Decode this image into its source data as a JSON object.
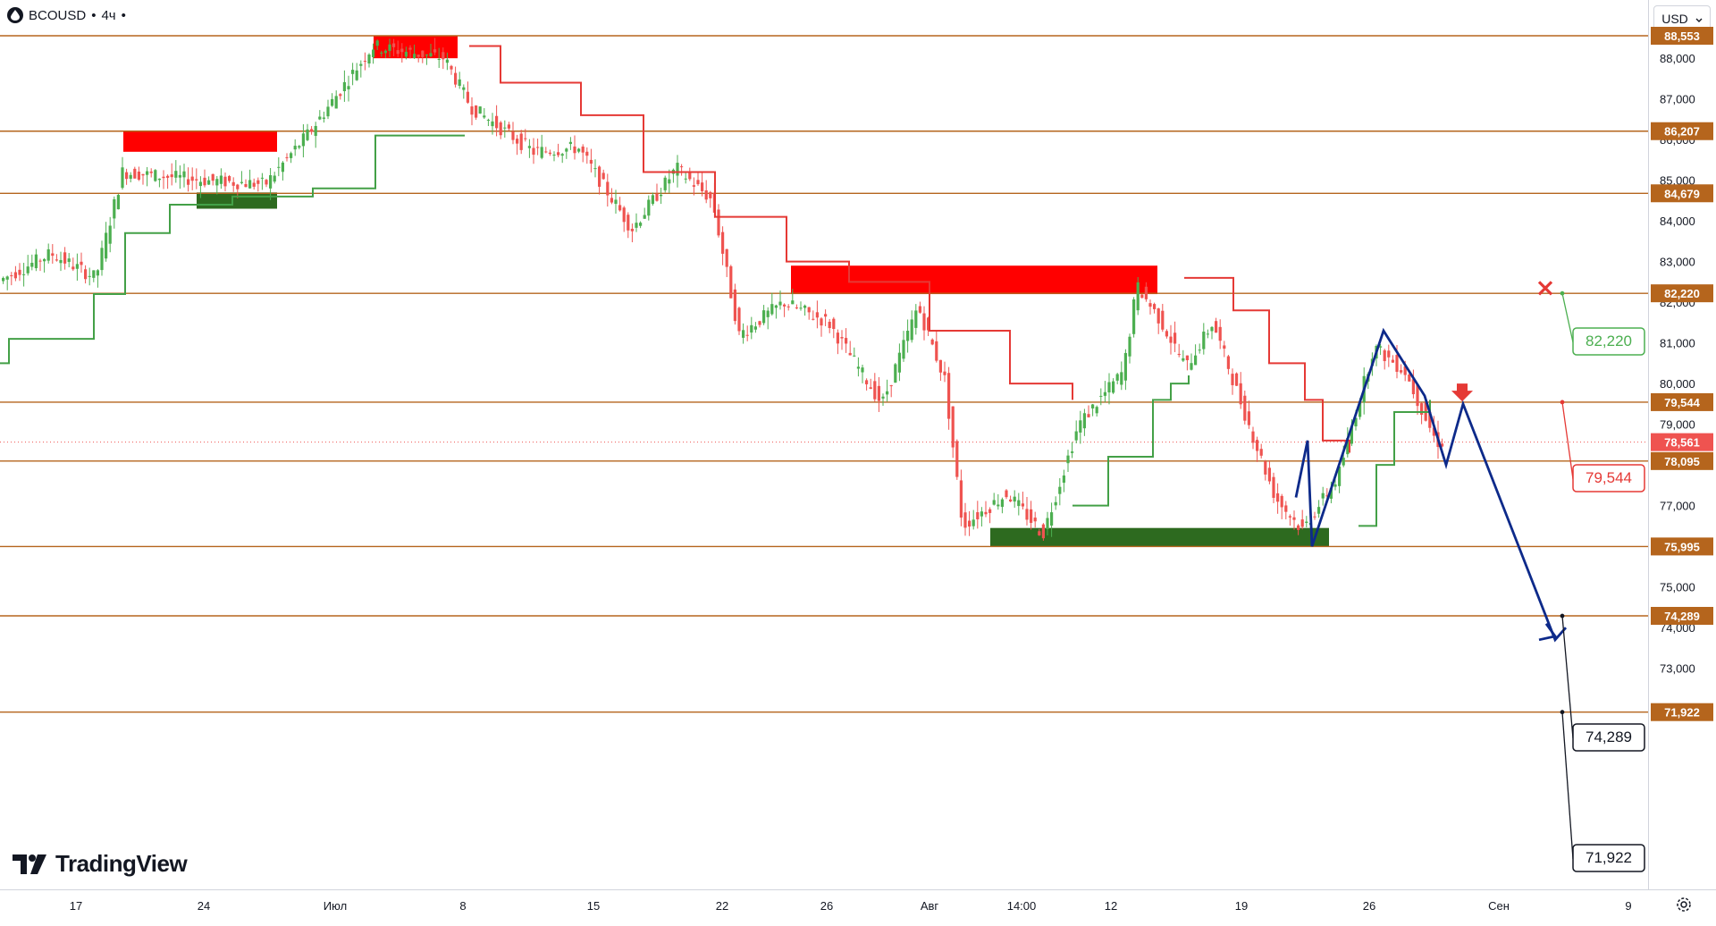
{
  "header": {
    "symbol": "BCOUSD",
    "separator": "•",
    "interval": "4ч",
    "dot": "•"
  },
  "currency": {
    "label": "USD"
  },
  "brand": {
    "name": "TradingView"
  },
  "colors": {
    "level_line": "#b5651d",
    "resistance": "#ff0000",
    "support": "#2d6a1f",
    "bull_candle": "#4caf50",
    "bear_candle": "#ef5350",
    "forecast": "#0d2a8a",
    "stop_up": "#e53935",
    "stop_dn": "#43a047"
  },
  "chart_data": {
    "type": "candlestick",
    "price_axis_ticks": [
      "88,000",
      "87,000",
      "86,000",
      "85,000",
      "84,000",
      "83,000",
      "82,000",
      "81,000",
      "80,000",
      "79,000",
      "77,000",
      "76,000",
      "75,000",
      "74,000",
      "73,000",
      "72,000"
    ],
    "price_range": [
      71.5,
      89.0
    ],
    "time_ticks": [
      "17",
      "24",
      "Июл",
      "8",
      "15",
      "22",
      "26",
      "Авг",
      "14:00",
      "12",
      "19",
      "26",
      "Сен",
      "9"
    ],
    "levels": [
      {
        "value": 88.553,
        "label": "88,553"
      },
      {
        "value": 86.207,
        "label": "86,207"
      },
      {
        "value": 84.679,
        "label": "84,679"
      },
      {
        "value": 82.22,
        "label": "82,220"
      },
      {
        "value": 79.544,
        "label": "79,544"
      },
      {
        "value": 78.095,
        "label": "78,095"
      },
      {
        "value": 75.995,
        "label": "75,995"
      },
      {
        "value": 74.289,
        "label": "74,289"
      },
      {
        "value": 71.922,
        "label": "71,922"
      }
    ],
    "current_price": {
      "value": 78.561,
      "label": "78,561"
    },
    "annotations": [
      {
        "text": "82,220",
        "role": "take-profit",
        "color": "#4caf50"
      },
      {
        "text": "79,544",
        "role": "stop-entry",
        "color": "#e53935"
      },
      {
        "text": "74,289",
        "role": "target-1",
        "color": "#131722"
      },
      {
        "text": "71,922",
        "role": "target-2",
        "color": "#131722"
      }
    ],
    "zones": [
      {
        "type": "resistance",
        "from": 88.0,
        "to": 88.55
      },
      {
        "type": "resistance",
        "from": 85.7,
        "to": 86.2
      },
      {
        "type": "support",
        "from": 84.3,
        "to": 84.7
      },
      {
        "type": "resistance",
        "from": 82.2,
        "to": 82.9
      },
      {
        "type": "support",
        "from": 76.0,
        "to": 76.45
      }
    ]
  }
}
